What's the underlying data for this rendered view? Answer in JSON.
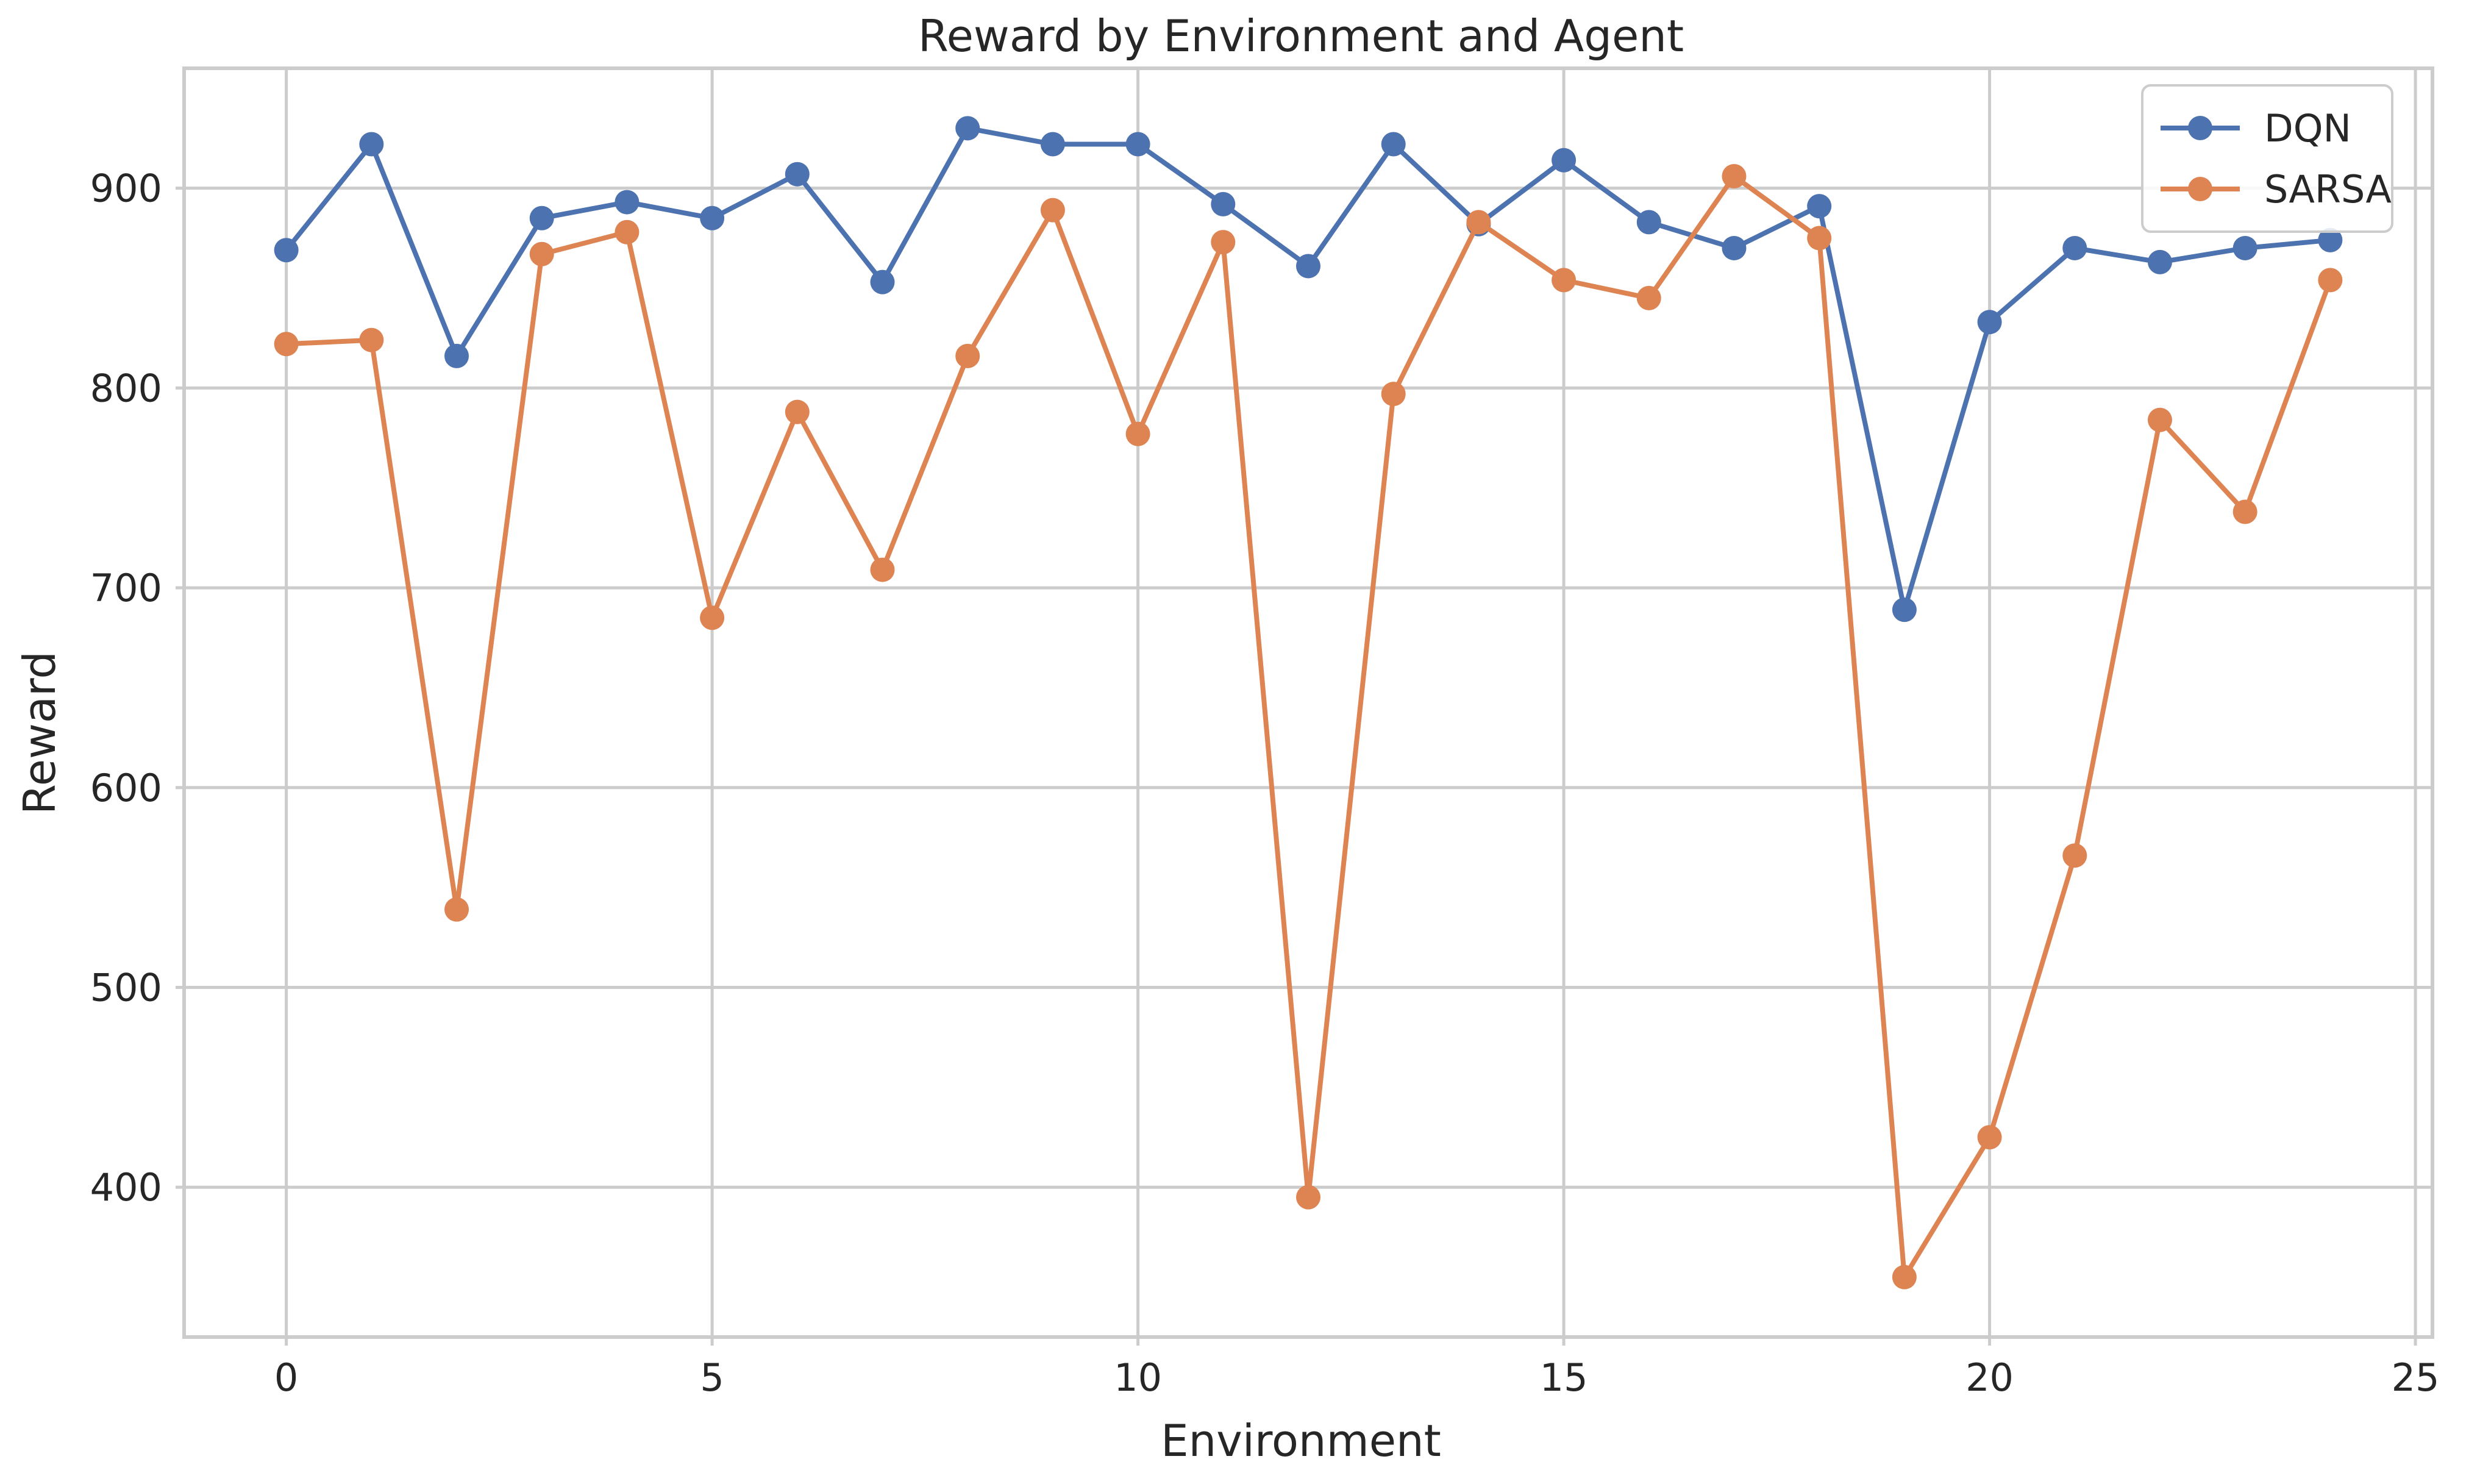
{
  "chart_data": {
    "type": "line",
    "title": "Reward by Environment and Agent",
    "xlabel": "Environment",
    "ylabel": "Reward",
    "xlim": [
      -1.2,
      25.2
    ],
    "ylim": [
      325,
      960
    ],
    "x_ticks": [
      0,
      5,
      10,
      15,
      20,
      25
    ],
    "y_ticks": [
      400,
      500,
      600,
      700,
      800,
      900
    ],
    "grid": true,
    "legend_position": "top-right",
    "x": [
      0,
      1,
      2,
      3,
      4,
      5,
      6,
      7,
      8,
      9,
      10,
      11,
      12,
      13,
      14,
      15,
      16,
      17,
      18,
      19,
      20,
      21,
      22,
      23,
      24
    ],
    "series": [
      {
        "name": "DQN",
        "color": "#4c72b0",
        "marker": "circle",
        "values": [
          869,
          922,
          816,
          885,
          893,
          885,
          907,
          853,
          930,
          922,
          922,
          892,
          861,
          922,
          882,
          914,
          883,
          870,
          891,
          689,
          833,
          870,
          863,
          870,
          874
        ]
      },
      {
        "name": "SARSA",
        "color": "#dd8452",
        "marker": "circle",
        "values": [
          822,
          824,
          539,
          867,
          878,
          685,
          788,
          709,
          816,
          889,
          777,
          873,
          395,
          797,
          883,
          854,
          845,
          906,
          875,
          355,
          425,
          566,
          784,
          738,
          854
        ]
      }
    ]
  }
}
